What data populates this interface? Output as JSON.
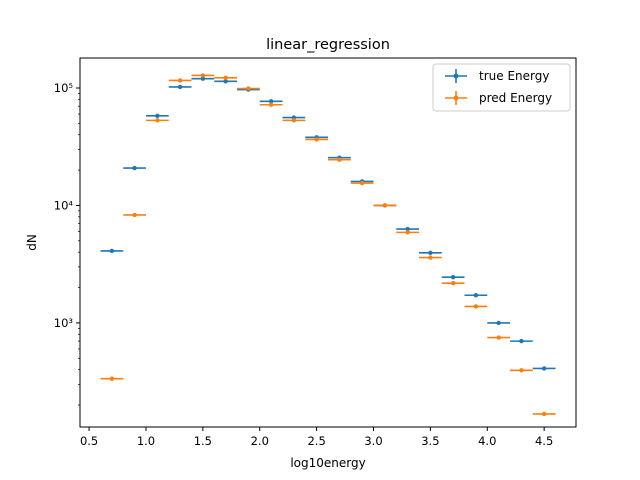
{
  "chart_data": {
    "type": "scatter",
    "title": "linear_regression",
    "xlabel": "log10energy",
    "ylabel": "dN",
    "xlim": [
      0.42,
      4.78
    ],
    "ylim": [
      130,
      180000
    ],
    "yscale": "log",
    "xticks": [
      0.5,
      1.0,
      1.5,
      2.0,
      2.5,
      3.0,
      3.5,
      4.0,
      4.5
    ],
    "xtick_labels": [
      "0.5",
      "1.0",
      "1.5",
      "2.0",
      "2.5",
      "3.0",
      "3.5",
      "4.0",
      "4.5"
    ],
    "yticks": [
      1000,
      10000,
      100000
    ],
    "ytick_labels": [
      "10³",
      "10⁴",
      "10⁵"
    ],
    "bin_half_width": 0.1,
    "x": [
      0.7,
      0.9,
      1.1,
      1.3,
      1.5,
      1.7,
      1.9,
      2.1,
      2.3,
      2.5,
      2.7,
      2.9,
      3.1,
      3.3,
      3.5,
      3.7,
      3.9,
      4.1,
      4.3,
      4.5
    ],
    "legend_position": "upper right",
    "series": [
      {
        "name": "true Energy",
        "color": "#1f77b4",
        "values": [
          4100,
          20800,
          58000,
          102000,
          120000,
          114000,
          97000,
          77000,
          56000,
          38000,
          25500,
          16000,
          10000,
          6300,
          3950,
          2450,
          1720,
          1000,
          700,
          410
        ]
      },
      {
        "name": "pred Energy",
        "color": "#ff7f0e",
        "values": [
          335,
          8300,
          53000,
          116000,
          128000,
          122000,
          99000,
          72000,
          53000,
          36500,
          24500,
          15500,
          10000,
          5900,
          3600,
          2180,
          1380,
          750,
          395,
          168
        ]
      }
    ]
  }
}
